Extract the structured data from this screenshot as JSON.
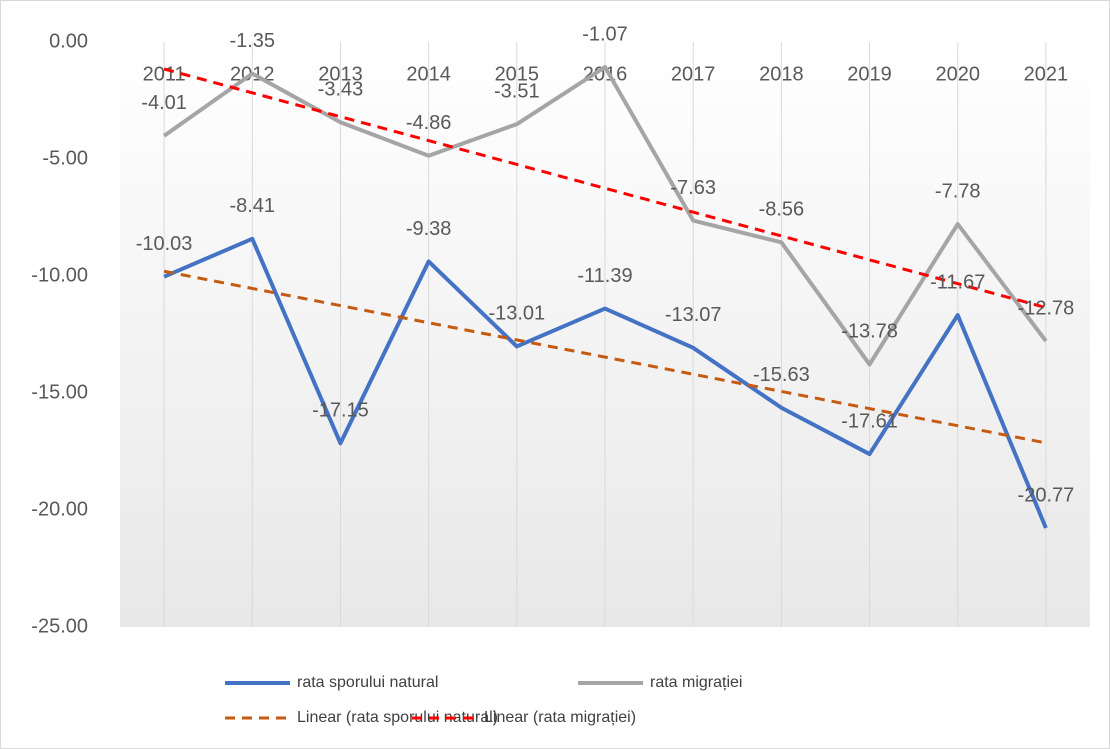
{
  "chart_data": {
    "type": "line",
    "categories": [
      "2011",
      "2012",
      "2013",
      "2014",
      "2015",
      "2016",
      "2017",
      "2018",
      "2019",
      "2020",
      "2021"
    ],
    "series": [
      {
        "name": "rata sporului natural",
        "color": "#4472c4",
        "values": [
          -10.03,
          -8.41,
          -17.15,
          -9.38,
          -13.01,
          -11.39,
          -13.07,
          -15.63,
          -17.61,
          -11.67,
          -20.77
        ],
        "trendline": {
          "name": "Linear (rata sporului natural)",
          "color": "#c55a11"
        }
      },
      {
        "name": "rata migrației",
        "color": "#a5a5a5",
        "values": [
          -4.01,
          -1.35,
          -3.43,
          -4.86,
          -3.51,
          -1.07,
          -7.63,
          -8.56,
          -13.78,
          -7.78,
          -12.78
        ],
        "trendline": {
          "name": "Linear (rata migrației)",
          "color": "#ff0000"
        }
      }
    ],
    "ylim": [
      -25,
      0
    ],
    "yticks": [
      {
        "value": 0,
        "label": "0.00"
      },
      {
        "value": -5,
        "label": "-5.00"
      },
      {
        "value": -10,
        "label": "-10.00"
      },
      {
        "value": -15,
        "label": "-15.00"
      },
      {
        "value": -20,
        "label": "-20.00"
      },
      {
        "value": -25,
        "label": "-25.00"
      }
    ],
    "grid": true,
    "legend": "bottom"
  }
}
